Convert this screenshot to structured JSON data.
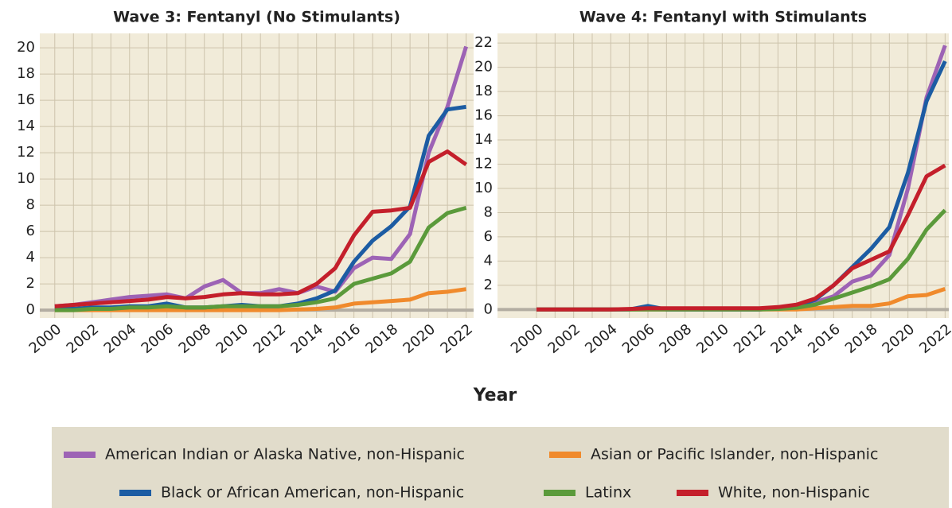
{
  "chart_data": [
    {
      "type": "line",
      "title": "Wave 3: Fentanyl (No Stimulants)",
      "xlabel": "Year",
      "x": [
        2000,
        2001,
        2002,
        2003,
        2004,
        2005,
        2006,
        2007,
        2008,
        2009,
        2010,
        2011,
        2012,
        2013,
        2014,
        2015,
        2016,
        2017,
        2018,
        2019,
        2020,
        2021,
        2022
      ],
      "xlim": [
        1999.2,
        2022.4
      ],
      "xticks": [
        2000,
        2002,
        2004,
        2006,
        2008,
        2010,
        2012,
        2014,
        2016,
        2018,
        2020,
        2022
      ],
      "ylim": [
        -0.6,
        21.1
      ],
      "yticks": [
        0,
        2,
        4,
        6,
        8,
        10,
        12,
        14,
        16,
        18,
        20
      ],
      "grid": true,
      "series": [
        {
          "name": "American Indian or Alaska Native, non-Hispanic",
          "color": "#9d63b5",
          "values": [
            0.3,
            0.4,
            0.6,
            0.8,
            1.0,
            1.1,
            1.2,
            0.9,
            1.8,
            2.3,
            1.3,
            1.3,
            1.6,
            1.3,
            1.8,
            1.4,
            3.2,
            4.0,
            3.9,
            5.8,
            12.0,
            15.5,
            20.1
          ]
        },
        {
          "name": "Asian or Pacific Islander, non-Hispanic",
          "color": "#f08a2c",
          "values": [
            0,
            0,
            0,
            0,
            0,
            0,
            0,
            0,
            0,
            0,
            0,
            0,
            0,
            0.05,
            0.1,
            0.2,
            0.5,
            0.6,
            0.7,
            0.8,
            1.3,
            1.4,
            1.6
          ]
        },
        {
          "name": "Black or African American, non-Hispanic",
          "color": "#1c5ca3",
          "values": [
            0.1,
            0.1,
            0.2,
            0.2,
            0.3,
            0.3,
            0.5,
            0.2,
            0.2,
            0.3,
            0.4,
            0.3,
            0.3,
            0.5,
            0.9,
            1.5,
            3.7,
            5.3,
            6.4,
            7.9,
            13.3,
            15.3,
            15.5
          ]
        },
        {
          "name": "Latinx",
          "color": "#5b9a3b",
          "values": [
            0,
            0,
            0.1,
            0.1,
            0.2,
            0.2,
            0.3,
            0.2,
            0.2,
            0.3,
            0.3,
            0.3,
            0.3,
            0.4,
            0.6,
            0.9,
            2.0,
            2.4,
            2.8,
            3.7,
            6.3,
            7.4,
            7.8
          ]
        },
        {
          "name": "White, non-Hispanic",
          "color": "#c41f2b",
          "values": [
            0.3,
            0.4,
            0.5,
            0.6,
            0.7,
            0.8,
            1.0,
            0.9,
            1.0,
            1.2,
            1.3,
            1.2,
            1.2,
            1.3,
            2.0,
            3.2,
            5.7,
            7.5,
            7.6,
            7.8,
            11.3,
            12.1,
            11.1
          ]
        }
      ]
    },
    {
      "type": "line",
      "title": "Wave 4: Fentanyl with Stimulants",
      "x": [
        2000,
        2001,
        2002,
        2003,
        2004,
        2005,
        2006,
        2007,
        2008,
        2009,
        2010,
        2011,
        2012,
        2013,
        2014,
        2015,
        2016,
        2017,
        2018,
        2019,
        2020,
        2021,
        2022
      ],
      "xlim": [
        1997.9,
        2022.2
      ],
      "xticks": [
        2000,
        2002,
        2004,
        2006,
        2008,
        2010,
        2012,
        2014,
        2016,
        2018,
        2020,
        2022
      ],
      "ylim": [
        -0.7,
        22.8
      ],
      "yticks": [
        0,
        2,
        4,
        6,
        8,
        10,
        12,
        14,
        16,
        18,
        20,
        22
      ],
      "grid": true,
      "series": [
        {
          "color": "#9d63b5",
          "values": [
            0,
            0,
            0,
            0,
            0,
            0,
            0,
            0,
            0,
            0,
            0,
            0,
            0,
            0.1,
            0.3,
            0.6,
            1.1,
            2.3,
            2.8,
            4.5,
            10.0,
            17.5,
            21.8
          ]
        },
        {
          "color": "#f08a2c",
          "values": [
            0,
            0,
            0,
            0,
            0,
            0,
            0,
            0,
            0,
            0,
            0,
            0,
            0,
            0,
            0,
            0.1,
            0.2,
            0.3,
            0.3,
            0.5,
            1.1,
            1.2,
            1.7
          ]
        },
        {
          "color": "#1c5ca3",
          "values": [
            0,
            0,
            0,
            0,
            0,
            0,
            0.3,
            0,
            0,
            0,
            0,
            0,
            0,
            0.1,
            0.3,
            0.8,
            2.0,
            3.5,
            5.0,
            6.8,
            11.3,
            17.2,
            20.5
          ]
        },
        {
          "color": "#5b9a3b",
          "values": [
            0,
            0,
            0,
            0,
            0,
            0,
            0,
            0,
            0,
            0,
            0,
            0,
            0,
            0.05,
            0.15,
            0.4,
            0.9,
            1.4,
            1.9,
            2.5,
            4.2,
            6.6,
            8.2
          ]
        },
        {
          "color": "#c41f2b",
          "values": [
            0,
            0,
            0,
            0,
            0,
            0.05,
            0.1,
            0.1,
            0.1,
            0.1,
            0.1,
            0.1,
            0.1,
            0.2,
            0.4,
            0.9,
            2.0,
            3.4,
            4.1,
            4.8,
            7.8,
            11.0,
            11.9
          ]
        }
      ]
    }
  ]
}
